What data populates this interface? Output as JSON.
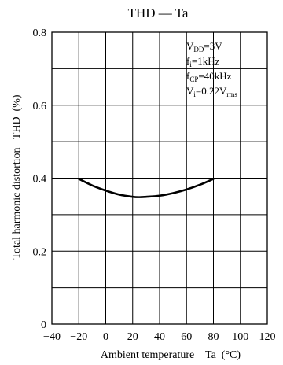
{
  "chart_data": {
    "type": "line",
    "title": "THD — Ta",
    "xlabel": "Ambient temperature    Ta  (°C)",
    "ylabel": "Total harmonic distortion   THD  (%)",
    "xlim": [
      -40,
      120
    ],
    "ylim": [
      0,
      0.8
    ],
    "x_ticks": [
      "−40",
      "−20",
      "0",
      "20",
      "40",
      "60",
      "80",
      "100",
      "120"
    ],
    "y_ticks": [
      "0",
      "0.2",
      "0.4",
      "0.6",
      "0.8"
    ],
    "grid": true,
    "annotations": [
      {
        "main": "V",
        "sub": "DD",
        "tail": "=3V"
      },
      {
        "main": "f",
        "sub": "i",
        "tail": "=1kHz"
      },
      {
        "main": "f",
        "sub": "CP",
        "tail": "=40kHz"
      },
      {
        "main": "V",
        "sub": "i",
        "tail": "=0.22V",
        "sub2": "rms"
      }
    ],
    "series": [
      {
        "x": [
          -20,
          -10,
          0,
          10,
          20,
          25,
          30,
          40,
          50,
          60,
          70,
          80
        ],
        "values": [
          0.398,
          0.38,
          0.366,
          0.355,
          0.349,
          0.348,
          0.349,
          0.352,
          0.359,
          0.369,
          0.382,
          0.398
        ]
      }
    ]
  }
}
